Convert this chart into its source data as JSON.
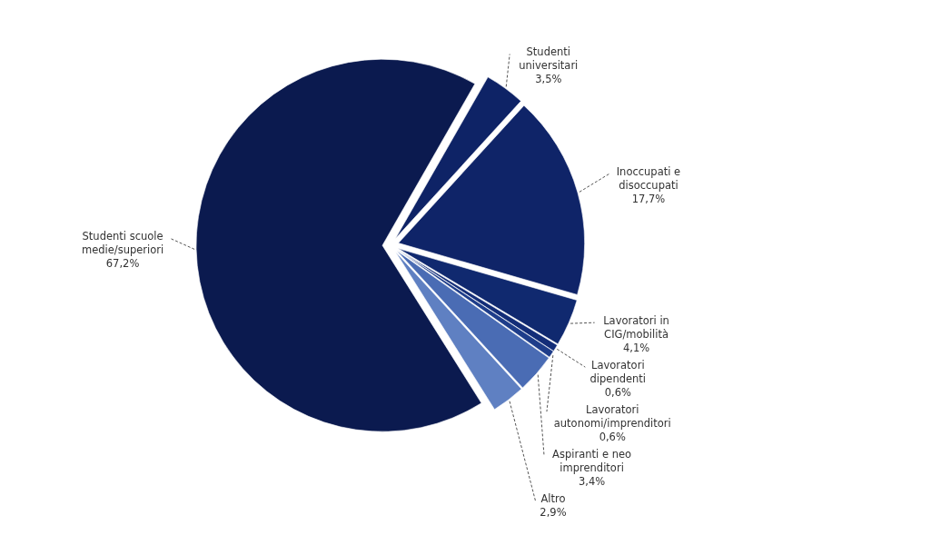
{
  "chart_data": {
    "type": "pie",
    "categories": [
      "Studenti universitari",
      "Inoccupati e disoccupati",
      "Lavoratori in CIG/mobilità",
      "Lavoratori dipendenti",
      "Lavoratori autonomi/imprenditori",
      "Aspiranti e neo imprenditori",
      "Altro",
      "Studenti scuole medie/superiori"
    ],
    "values": [
      3.5,
      17.7,
      4.1,
      0.6,
      0.6,
      3.4,
      2.9,
      67.2
    ],
    "value_labels": [
      "3,5%",
      "17,7%",
      "4,1%",
      "0,6%",
      "0,6%",
      "3,4%",
      "2,9%",
      "67,2%"
    ],
    "colors": [
      "#0e2366",
      "#0f2468",
      "#10296f",
      "#132d78",
      "#1e3d8a",
      "#4a6cb4",
      "#5f80c2",
      "#0b1a4f"
    ]
  }
}
